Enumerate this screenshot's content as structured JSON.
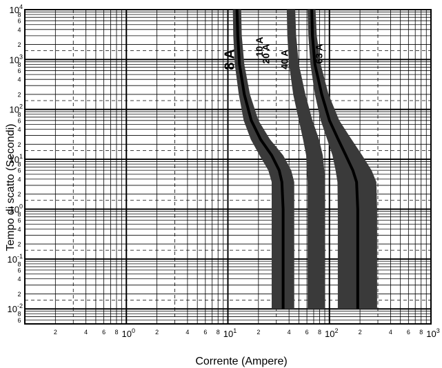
{
  "chart_data": {
    "type": "line",
    "title": "",
    "xlabel": "Corrente (Ampere)",
    "ylabel": "Tempo di scatto (Secondi)",
    "x_scale": "log",
    "y_scale": "log",
    "xlim": [
      0.1,
      1000
    ],
    "ylim": [
      0.005,
      10000
    ],
    "grid": true,
    "x_major_ticks": [
      {
        "value": 1,
        "base": "10",
        "exp": "0"
      },
      {
        "value": 10,
        "base": "10",
        "exp": "1"
      },
      {
        "value": 100,
        "base": "10",
        "exp": "2"
      },
      {
        "value": 1000,
        "base": "10",
        "exp": "3"
      }
    ],
    "y_major_ticks": [
      {
        "value": 0.01,
        "base": "10",
        "exp": "-2"
      },
      {
        "value": 0.1,
        "base": "10",
        "exp": "-1"
      },
      {
        "value": 1,
        "base": "10",
        "exp": "0"
      },
      {
        "value": 10,
        "base": "10",
        "exp": "1"
      },
      {
        "value": 100,
        "base": "10",
        "exp": "2"
      },
      {
        "value": 1000,
        "base": "10",
        "exp": "3"
      },
      {
        "value": 10000,
        "base": "10",
        "exp": "4"
      }
    ],
    "minor_tick_labels": [
      "2",
      "4",
      "6",
      "8"
    ],
    "series": [
      {
        "name": "8 A",
        "band_left": [
          [
            10000,
            11.2
          ],
          [
            3000,
            11.3
          ],
          [
            800,
            11.7
          ],
          [
            200,
            12.8
          ],
          [
            60,
            14.3
          ],
          [
            25,
            16.8
          ],
          [
            12,
            20.5
          ],
          [
            6,
            25
          ],
          [
            3.5,
            27
          ],
          [
            1,
            27
          ],
          [
            0.01,
            27
          ]
        ],
        "band_right": [
          [
            10000,
            13.5
          ],
          [
            3000,
            13.7
          ],
          [
            800,
            14.5
          ],
          [
            200,
            16.5
          ],
          [
            60,
            20
          ],
          [
            25,
            26
          ],
          [
            12,
            35
          ],
          [
            6,
            42
          ],
          [
            3.5,
            45
          ],
          [
            1,
            45
          ],
          [
            0.01,
            45
          ]
        ],
        "center": [
          [
            10000,
            12.3
          ],
          [
            3000,
            12.5
          ],
          [
            800,
            13
          ],
          [
            200,
            14.5
          ],
          [
            60,
            17
          ],
          [
            25,
            21
          ],
          [
            12,
            27
          ],
          [
            6,
            32
          ],
          [
            3.5,
            34
          ],
          [
            1,
            35
          ],
          [
            0.01,
            35
          ]
        ]
      },
      {
        "name": "10 A",
        "band_left": [],
        "band_right": [],
        "center": []
      },
      {
        "name": "20 A",
        "band_left": [],
        "band_right": [],
        "center": []
      },
      {
        "name": "40 A",
        "band_left": [
          [
            10000,
            38
          ],
          [
            3000,
            38.5
          ],
          [
            800,
            40
          ],
          [
            200,
            44
          ],
          [
            60,
            50
          ],
          [
            25,
            55
          ],
          [
            12,
            59
          ],
          [
            6,
            60
          ],
          [
            3.5,
            61
          ],
          [
            1,
            61
          ],
          [
            0.01,
            61
          ]
        ],
        "band_right": [
          [
            10000,
            46
          ],
          [
            3000,
            47
          ],
          [
            800,
            50
          ],
          [
            200,
            58
          ],
          [
            60,
            68
          ],
          [
            25,
            79
          ],
          [
            12,
            86
          ],
          [
            6,
            89
          ],
          [
            3.5,
            90
          ],
          [
            1,
            90
          ],
          [
            0.01,
            90
          ]
        ],
        "center": []
      },
      {
        "name": "63 A",
        "band_left": [
          [
            10000,
            61
          ],
          [
            3000,
            62
          ],
          [
            800,
            65
          ],
          [
            200,
            72
          ],
          [
            60,
            82
          ],
          [
            25,
            95
          ],
          [
            12,
            107
          ],
          [
            6,
            115
          ],
          [
            3.5,
            120
          ],
          [
            1,
            121
          ],
          [
            0.01,
            121
          ]
        ],
        "band_right": [
          [
            10000,
            73
          ],
          [
            3000,
            75
          ],
          [
            800,
            82
          ],
          [
            200,
            98
          ],
          [
            60,
            125
          ],
          [
            25,
            165
          ],
          [
            12,
            210
          ],
          [
            6,
            260
          ],
          [
            3.5,
            290
          ],
          [
            1,
            295
          ],
          [
            0.01,
            295
          ]
        ],
        "center": [
          [
            10000,
            67
          ],
          [
            3000,
            68
          ],
          [
            800,
            72
          ],
          [
            200,
            84
          ],
          [
            60,
            100
          ],
          [
            25,
            122
          ],
          [
            12,
            145
          ],
          [
            6,
            170
          ],
          [
            3.5,
            185
          ],
          [
            1,
            190
          ],
          [
            0.01,
            190
          ]
        ]
      }
    ],
    "curve_labels": [
      {
        "text": "8 A",
        "x": 11.5,
        "y": 1000
      },
      {
        "text": "10 A",
        "x": 22,
        "y": 1800
      },
      {
        "text": "20 A",
        "x": 25.5,
        "y": 1300
      },
      {
        "text": "40 A",
        "x": 39,
        "y": 1000
      },
      {
        "text": "63 A",
        "x": 85,
        "y": 1300
      }
    ],
    "colors": {
      "band": "#3a3a3a",
      "center": "#000000",
      "grid": "#000000",
      "background": "#ffffff"
    }
  }
}
